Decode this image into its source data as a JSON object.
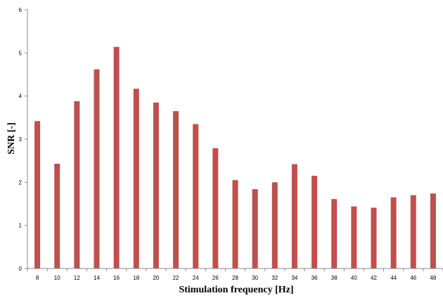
{
  "chart_data": {
    "type": "bar",
    "title": "",
    "xlabel": "Stimulation frequency [Hz]",
    "ylabel": "SNR [-]",
    "ylim": [
      0,
      6
    ],
    "yticks": [
      "0",
      "1",
      "2",
      "3",
      "4",
      "5",
      "6"
    ],
    "grid": false,
    "legend": "none",
    "bar_color": "#c0504d",
    "categories": [
      "8",
      "10",
      "12",
      "14",
      "16",
      "18",
      "20",
      "22",
      "24",
      "26",
      "28",
      "30",
      "32",
      "34",
      "36",
      "38",
      "40",
      "42",
      "44",
      "46",
      "48"
    ],
    "series": [
      {
        "values": [
          3.42,
          2.43,
          3.88,
          4.62,
          5.14,
          4.17,
          3.85,
          3.65,
          3.35,
          2.79,
          2.05,
          1.84,
          2.0,
          2.42,
          2.15,
          1.61,
          1.44,
          1.41,
          1.65,
          1.7,
          1.74
        ]
      }
    ]
  }
}
